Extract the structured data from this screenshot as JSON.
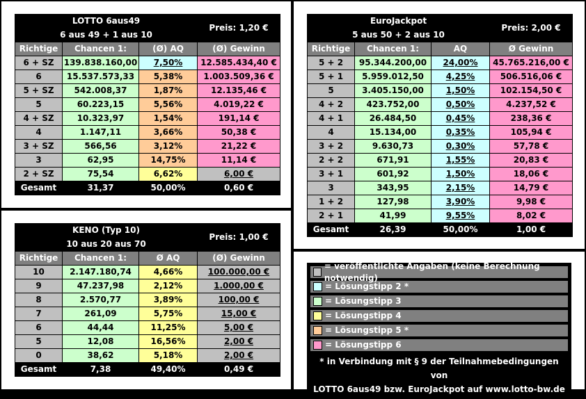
{
  "lotto": {
    "title": "LOTTO 6aus49",
    "subtitle": "6 aus 49 + 1 aus 10",
    "price": "Preis: 1,20 €",
    "headers": [
      "Richtige",
      "Chancen 1:",
      "(Ø) AQ",
      "(Ø) Gewinn"
    ],
    "rows": [
      [
        "6 + SZ",
        "139.838.160,00",
        "7,50%",
        "12.585.434,40 €"
      ],
      [
        "6",
        "15.537.573,33",
        "5,38%",
        "1.003.509,36 €"
      ],
      [
        "5 + SZ",
        "542.008,37",
        "1,87%",
        "12.135,46 €"
      ],
      [
        "5",
        "60.223,15",
        "5,56%",
        "4.019,22 €"
      ],
      [
        "4 + SZ",
        "10.323,97",
        "1,54%",
        "191,14 €"
      ],
      [
        "4",
        "1.147,11",
        "3,66%",
        "50,38 €"
      ],
      [
        "3 + SZ",
        "566,56",
        "3,12%",
        "21,22 €"
      ],
      [
        "3",
        "62,95",
        "14,75%",
        "11,14 €"
      ],
      [
        "2 + SZ",
        "75,54",
        "6,62%",
        "6,00 €"
      ]
    ],
    "total": [
      "Gesamt",
      "31,37",
      "50,00%",
      "0,60 €"
    ]
  },
  "eurojackpot": {
    "title": "EuroJackpot",
    "subtitle": "5 aus 50 + 2 aus 10",
    "price": "Preis: 2,00 €",
    "headers": [
      "Richtige",
      "Chancen 1:",
      "AQ",
      "Ø Gewinn"
    ],
    "rows": [
      [
        "5 + 2",
        "95.344.200,00",
        "24,00%",
        "45.765.216,00 €"
      ],
      [
        "5 + 1",
        "5.959.012,50",
        "4,25%",
        "506.516,06 €"
      ],
      [
        "5",
        "3.405.150,00",
        "1,50%",
        "102.154,50 €"
      ],
      [
        "4 + 2",
        "423.752,00",
        "0,50%",
        "4.237,52 €"
      ],
      [
        "4 + 1",
        "26.484,50",
        "0,45%",
        "238,36 €"
      ],
      [
        "4",
        "15.134,00",
        "0,35%",
        "105,94 €"
      ],
      [
        "3 + 2",
        "9.630,73",
        "0,30%",
        "57,78 €"
      ],
      [
        "2 + 2",
        "671,91",
        "1,55%",
        "20,83 €"
      ],
      [
        "3 + 1",
        "601,92",
        "1,50%",
        "18,06 €"
      ],
      [
        "3",
        "343,95",
        "2,15%",
        "14,79 €"
      ],
      [
        "1 + 2",
        "127,98",
        "3,90%",
        "9,98 €"
      ],
      [
        "2 + 1",
        "41,99",
        "9,55%",
        "8,02 €"
      ]
    ],
    "total": [
      "Gesamt",
      "26,39",
      "50,00%",
      "1,00 €"
    ]
  },
  "keno": {
    "title": "KENO (Typ 10)",
    "subtitle": "10 aus 20 aus 70",
    "price": "Preis: 1,00 €",
    "headers": [
      "Richtige",
      "Chancen 1:",
      "Ø AQ",
      "(Ø) Gewinn"
    ],
    "rows": [
      [
        "10",
        "2.147.180,74",
        "4,66%",
        "100.000,00 €"
      ],
      [
        "9",
        "47.237,98",
        "2,12%",
        "1.000,00 €"
      ],
      [
        "8",
        "2.570,77",
        "3,89%",
        "100,00 €"
      ],
      [
        "7",
        "261,09",
        "5,75%",
        "15,00 €"
      ],
      [
        "6",
        "44,44",
        "11,25%",
        "5,00 €"
      ],
      [
        "5",
        "12,08",
        "16,56%",
        "2,00 €"
      ],
      [
        "0",
        "38,62",
        "5,18%",
        "2,00 €"
      ]
    ],
    "total": [
      "Gesamt",
      "7,38",
      "49,40%",
      "0,49 €"
    ]
  },
  "legend": {
    "items": [
      {
        "label": "= veröffentlichte Angaben (keine Berechnung notwendig)",
        "color": "#c0c0c0"
      },
      {
        "label": "= Lösungstipp 2 *",
        "color": "#ccffff"
      },
      {
        "label": "= Lösungstipp 3",
        "color": "#ccffcc"
      },
      {
        "label": "= Lösungstipp 4",
        "color": "#ffff99"
      },
      {
        "label": "= Lösungstipp 5 *",
        "color": "#ffcc99"
      },
      {
        "label": "= Lösungstipp 6",
        "color": "#ff99cc"
      }
    ],
    "note_line1": "* in Verbindung mit § 9 der Teilnahmebedingungen von",
    "note_line2": "LOTTO 6aus49 bzw. EuroJackpot auf www.lotto-bw.de"
  }
}
